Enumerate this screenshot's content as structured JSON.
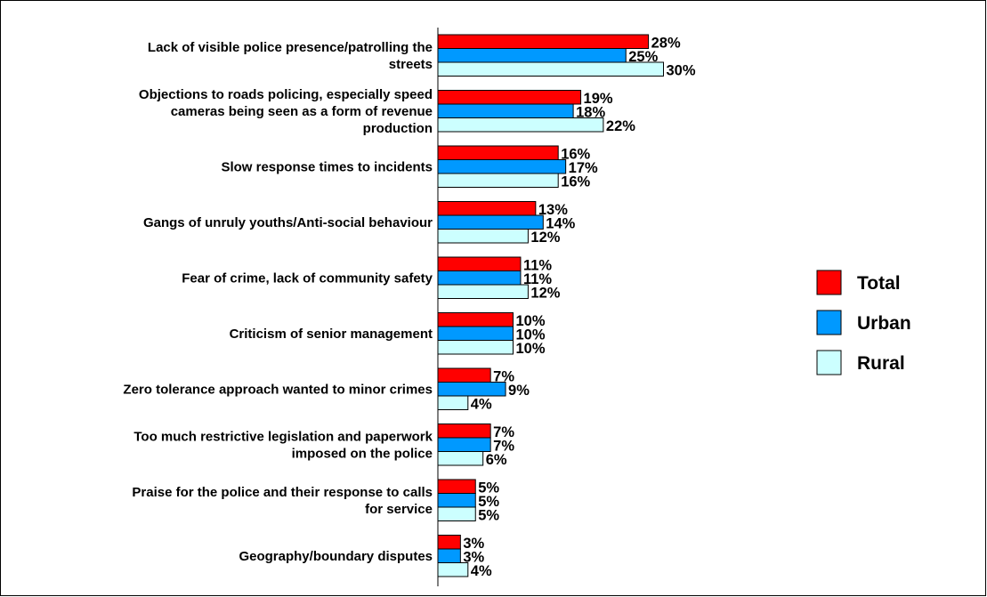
{
  "chart_data": {
    "type": "bar",
    "orientation": "horizontal",
    "categories": [
      [
        "Lack of visible police presence/patrolling the",
        "streets"
      ],
      [
        "Objections to roads policing, especially speed",
        "cameras being seen as a form of revenue",
        "production"
      ],
      [
        "Slow response times to incidents"
      ],
      [
        "Gangs of unruly youths/Anti-social behaviour"
      ],
      [
        "Fear of crime, lack of community safety"
      ],
      [
        "Criticism of senior management"
      ],
      [
        "Zero tolerance approach wanted to minor crimes"
      ],
      [
        "Too much restrictive legislation and paperwork",
        "imposed on the police"
      ],
      [
        "Praise for the police and their response to calls",
        "for service"
      ],
      [
        "Geography/boundary disputes"
      ]
    ],
    "series": [
      {
        "name": "Total",
        "color": "#ff0000",
        "values": [
          28,
          19,
          16,
          13,
          11,
          10,
          7,
          7,
          5,
          3
        ]
      },
      {
        "name": "Urban",
        "color": "#0099ff",
        "values": [
          25,
          18,
          17,
          14,
          11,
          10,
          9,
          7,
          5,
          3
        ]
      },
      {
        "name": "Rural",
        "color": "#ccffff",
        "values": [
          30,
          22,
          16,
          12,
          12,
          10,
          4,
          6,
          5,
          4
        ]
      }
    ],
    "value_suffix": "%",
    "legend_position": "right",
    "grid": false
  }
}
